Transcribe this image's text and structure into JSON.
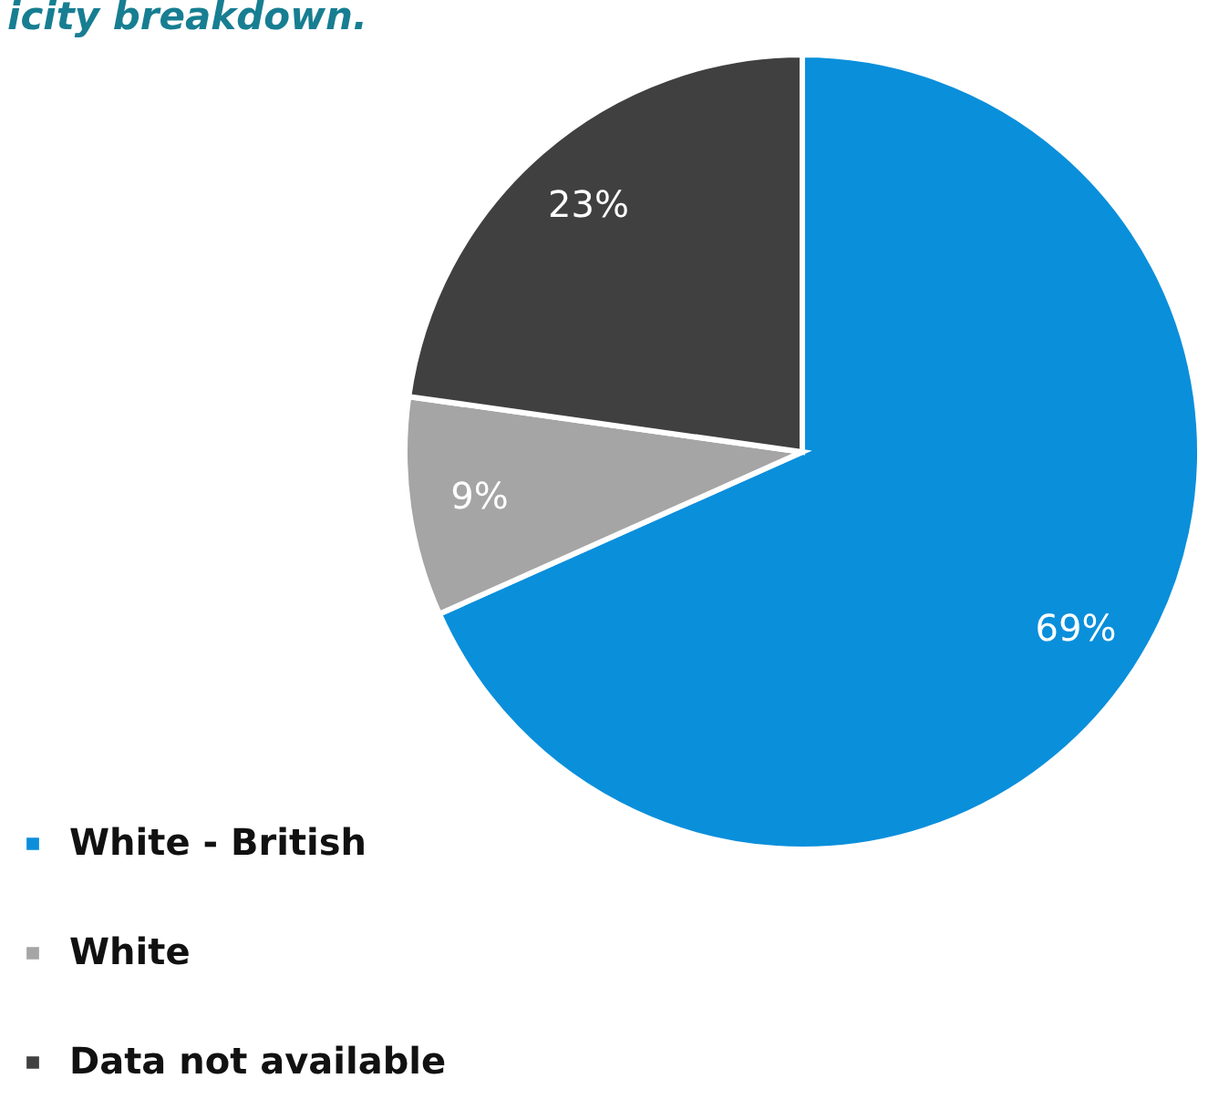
{
  "chart_data": {
    "type": "pie",
    "title": "icity breakdown.",
    "categories": [
      "White - British",
      "White",
      "Data not available"
    ],
    "values": [
      69,
      9,
      23
    ],
    "colors": [
      "#0a8fdb",
      "#a5a5a5",
      "#404040"
    ],
    "value_labels": [
      "69%",
      "9%",
      "23%"
    ],
    "legend": "bottom left"
  }
}
